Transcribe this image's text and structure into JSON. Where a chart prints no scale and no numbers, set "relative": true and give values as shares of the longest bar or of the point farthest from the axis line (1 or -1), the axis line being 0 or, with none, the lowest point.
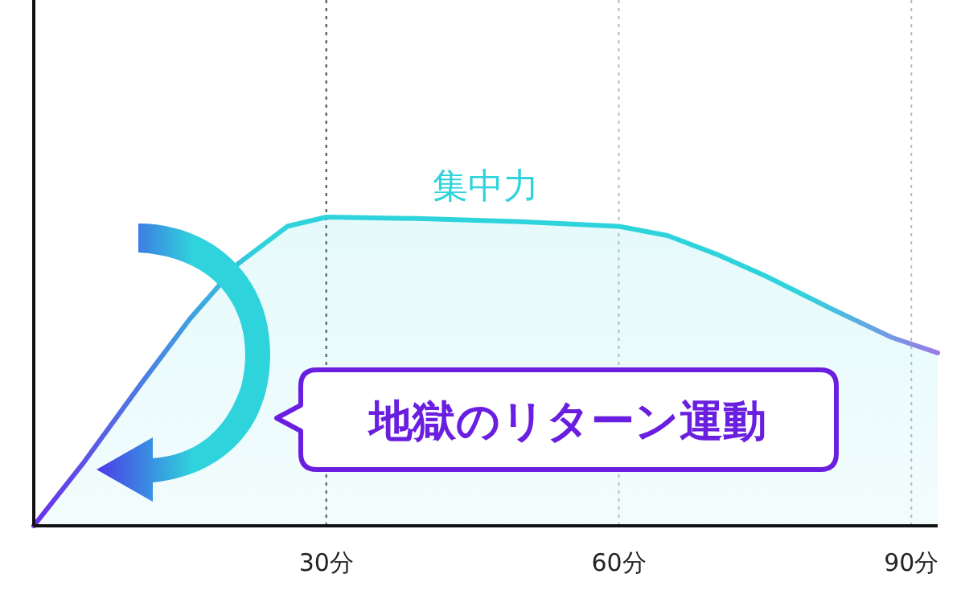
{
  "chart_data": {
    "type": "area",
    "relative": true,
    "xlim": [
      0,
      92.7
    ],
    "xticks": [
      {
        "value": 30,
        "label": "30分"
      },
      {
        "value": 60,
        "label": "60分"
      },
      {
        "value": 90,
        "label": "90分"
      }
    ],
    "grid": "x",
    "legend": false,
    "ref_lines": [
      {
        "axis": "x",
        "value": 30,
        "color": "#666666",
        "line_style": "dotted"
      }
    ],
    "series": [
      {
        "name": "集中力",
        "color": "#2ed3dc",
        "x": [
          0,
          5,
          11,
          16,
          21,
          26,
          30,
          40,
          50,
          60,
          65,
          70,
          75,
          82,
          88,
          92.7
        ],
        "values": [
          0,
          0.2,
          0.46,
          0.67,
          0.85,
          0.97,
          1.0,
          0.995,
          0.985,
          0.97,
          0.94,
          0.88,
          0.81,
          0.7,
          0.61,
          0.56
        ]
      }
    ],
    "annotations": [
      "地獄のリターン運動"
    ]
  }
}
